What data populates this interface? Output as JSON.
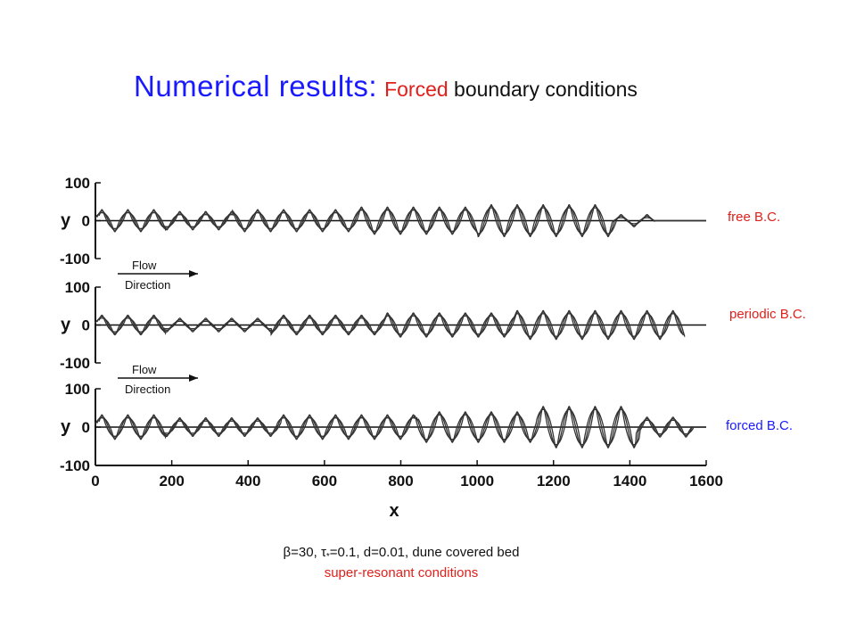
{
  "title": {
    "main": "Numerical results:",
    "highlight": "Forced",
    "rest": " boundary conditions"
  },
  "chart_data": {
    "type": "line",
    "xlabel": "x",
    "ylabel": "y",
    "xlim": [
      0,
      1600
    ],
    "xticks": [
      "0",
      "200",
      "400",
      "600",
      "800",
      "1000",
      "1200",
      "1400",
      "1600"
    ],
    "yticks": [
      "100",
      "0",
      "-100"
    ],
    "ylim": [
      -100,
      100
    ],
    "panels": [
      {
        "label": "free B.C.",
        "label_color": "#e0201b",
        "annotation": [
          "Flow",
          "Direction"
        ],
        "x_range": [
          0,
          1600
        ],
        "segments": [
          {
            "x_start": 0,
            "x_end": 180,
            "amplitude": 25
          },
          {
            "x_start": 180,
            "x_end": 360,
            "amplitude": 20
          },
          {
            "x_start": 360,
            "x_end": 680,
            "amplitude": 25
          },
          {
            "x_start": 680,
            "x_end": 1000,
            "amplitude": 32
          },
          {
            "x_start": 1000,
            "x_end": 1360,
            "amplitude": 38
          },
          {
            "x_start": 1360,
            "x_end": 1460,
            "amplitude": 12
          },
          {
            "x_start": 1460,
            "x_end": 1600,
            "amplitude": 0
          }
        ]
      },
      {
        "label": "periodic B.C.",
        "label_color": "#e0201b",
        "annotation": [
          "Flow",
          "Direction"
        ],
        "x_range": [
          0,
          1600
        ],
        "segments": [
          {
            "x_start": 0,
            "x_end": 180,
            "amplitude": 22
          },
          {
            "x_start": 180,
            "x_end": 460,
            "amplitude": 14
          },
          {
            "x_start": 460,
            "x_end": 760,
            "amplitude": 22
          },
          {
            "x_start": 760,
            "x_end": 1100,
            "amplitude": 28
          },
          {
            "x_start": 1100,
            "x_end": 1540,
            "amplitude": 34
          }
        ]
      },
      {
        "label": "forced B.C.",
        "label_color": "#1a1aff",
        "annotation": [],
        "x_range": [
          0,
          1600
        ],
        "segments": [
          {
            "x_start": 0,
            "x_end": 180,
            "amplitude": 28
          },
          {
            "x_start": 180,
            "x_end": 480,
            "amplitude": 20
          },
          {
            "x_start": 480,
            "x_end": 840,
            "amplitude": 28
          },
          {
            "x_start": 840,
            "x_end": 1160,
            "amplitude": 36
          },
          {
            "x_start": 1160,
            "x_end": 1420,
            "amplitude": 50
          },
          {
            "x_start": 1420,
            "x_end": 1560,
            "amplitude": 22
          },
          {
            "x_start": 1560,
            "x_end": 1600,
            "amplitude": 0
          }
        ]
      }
    ]
  },
  "caption": {
    "beta_symbol": "β",
    "params_a": "=30, ",
    "tau_symbol": "τ",
    "tau_sub": "*",
    "params_b": "=0.1, d=0.01,   dune covered bed",
    "regime": "super-resonant conditions"
  },
  "colors": {
    "title_blue": "#1a1aff",
    "accent_red": "#e0201b",
    "ink": "#111111"
  }
}
